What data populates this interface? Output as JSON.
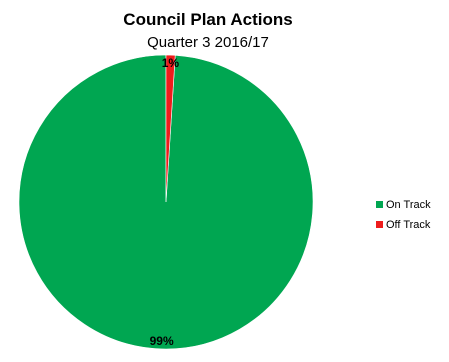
{
  "chart_data": {
    "type": "pie",
    "title": "Council Plan Actions",
    "subtitle": "Quarter 3 2016/17",
    "categories": [
      "On Track",
      "Off Track"
    ],
    "values": [
      99,
      1
    ],
    "data_labels": [
      "99%",
      "1%"
    ],
    "colors": [
      "#00a651",
      "#ee1c1c"
    ],
    "legend": {
      "position": "right",
      "entries": [
        "On Track",
        "Off Track"
      ]
    }
  }
}
